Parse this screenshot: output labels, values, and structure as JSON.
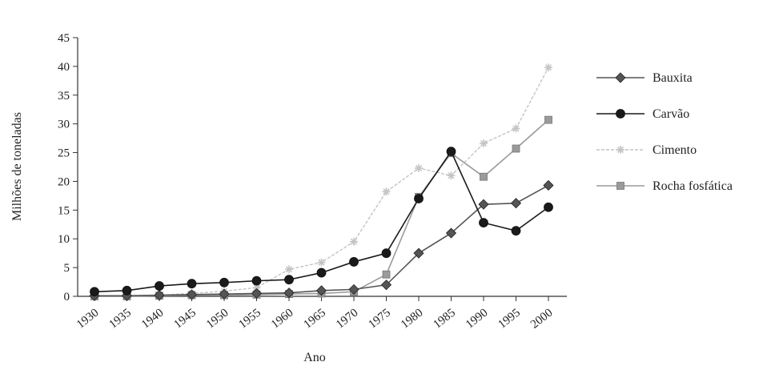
{
  "chart_data": {
    "type": "line",
    "title": "",
    "xlabel": "Ano",
    "ylabel": "Milhões de toneladas",
    "x": [
      1930,
      1935,
      1940,
      1945,
      1950,
      1955,
      1960,
      1965,
      1970,
      1975,
      1980,
      1985,
      1990,
      1995,
      2000
    ],
    "xticks": [
      "1930",
      "1935",
      "1940",
      "1945",
      "1950",
      "1955",
      "1960",
      "1965",
      "1970",
      "1975",
      "1980",
      "1985",
      "1990",
      "1995",
      "2000"
    ],
    "yticks": [
      "0",
      "5",
      "10",
      "15",
      "20",
      "25",
      "30",
      "35",
      "40",
      "45"
    ],
    "ylim": [
      0,
      45
    ],
    "grid": false,
    "legend_position": "right",
    "series": [
      {
        "name": "Bauxita",
        "marker": "diamond",
        "color": "#555555",
        "values": [
          0.1,
          0.1,
          0.2,
          0.3,
          0.4,
          0.5,
          0.6,
          1.0,
          1.2,
          2.0,
          7.5,
          11.0,
          16.0,
          16.2,
          19.3
        ]
      },
      {
        "name": "Carvão",
        "marker": "circle",
        "color": "#1a1a1a",
        "values": [
          0.8,
          1.0,
          1.8,
          2.2,
          2.4,
          2.7,
          2.9,
          4.1,
          6.0,
          7.5,
          17.0,
          25.2,
          12.8,
          11.4,
          15.5
        ]
      },
      {
        "name": "Cimento",
        "marker": "star",
        "color": "#c4c4c4",
        "values": [
          0.0,
          0.1,
          0.2,
          0.5,
          0.9,
          1.5,
          4.7,
          5.9,
          9.5,
          18.2,
          22.3,
          21.0,
          26.6,
          29.2,
          39.8
        ]
      },
      {
        "name": "Rocha fosfática",
        "marker": "square",
        "color": "#9a9a9a",
        "values": [
          0.0,
          0.0,
          0.1,
          0.2,
          0.2,
          0.3,
          0.4,
          0.5,
          0.8,
          3.8,
          17.3,
          24.9,
          20.8,
          25.7,
          30.7
        ]
      }
    ]
  }
}
